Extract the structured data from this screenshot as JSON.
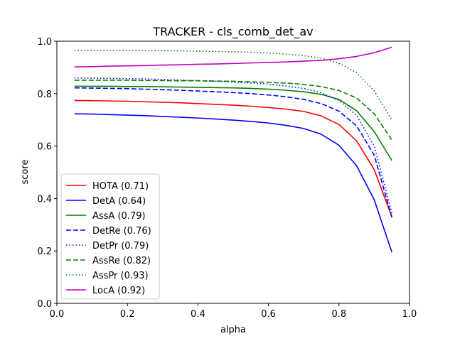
{
  "chart_data": {
    "type": "line",
    "title": "TRACKER - cls_comb_det_av",
    "xlabel": "alpha",
    "ylabel": "score",
    "xlim": [
      0.0,
      1.0
    ],
    "ylim": [
      0.0,
      1.0
    ],
    "xticks": [
      "0.0",
      "0.2",
      "0.4",
      "0.6",
      "0.8",
      "1.0"
    ],
    "yticks": [
      "0.0",
      "0.2",
      "0.4",
      "0.6",
      "0.8",
      "1.0"
    ],
    "grid": false,
    "legend_position": "lower-left",
    "x": [
      0.05,
      0.1,
      0.15,
      0.2,
      0.25,
      0.3,
      0.35,
      0.4,
      0.45,
      0.5,
      0.55,
      0.6,
      0.65,
      0.7,
      0.75,
      0.8,
      0.85,
      0.9,
      0.95
    ],
    "series": [
      {
        "name": "HOTA (0.71)",
        "color": "#ff0000",
        "dash": "solid",
        "values": [
          0.774,
          0.773,
          0.772,
          0.771,
          0.769,
          0.767,
          0.765,
          0.762,
          0.759,
          0.756,
          0.752,
          0.747,
          0.741,
          0.732,
          0.715,
          0.682,
          0.62,
          0.51,
          0.33
        ]
      },
      {
        "name": "DetA (0.64)",
        "color": "#0000ff",
        "dash": "solid",
        "values": [
          0.723,
          0.722,
          0.72,
          0.718,
          0.716,
          0.713,
          0.71,
          0.707,
          0.703,
          0.699,
          0.694,
          0.688,
          0.679,
          0.667,
          0.645,
          0.603,
          0.525,
          0.395,
          0.195
        ]
      },
      {
        "name": "AssA (0.79)",
        "color": "#008000",
        "dash": "solid",
        "values": [
          0.828,
          0.828,
          0.828,
          0.827,
          0.827,
          0.826,
          0.825,
          0.824,
          0.823,
          0.822,
          0.82,
          0.817,
          0.813,
          0.807,
          0.797,
          0.778,
          0.735,
          0.655,
          0.545
        ]
      },
      {
        "name": "DetRe (0.76)",
        "color": "#0000ff",
        "dash": "dashed",
        "values": [
          0.822,
          0.821,
          0.82,
          0.819,
          0.817,
          0.815,
          0.813,
          0.81,
          0.807,
          0.804,
          0.8,
          0.795,
          0.788,
          0.778,
          0.762,
          0.733,
          0.677,
          0.565,
          0.328
        ]
      },
      {
        "name": "DetPr (0.79)",
        "color": "#0000ff",
        "dash": "dotted",
        "values": [
          0.86,
          0.859,
          0.858,
          0.857,
          0.856,
          0.854,
          0.852,
          0.85,
          0.847,
          0.844,
          0.841,
          0.836,
          0.829,
          0.82,
          0.803,
          0.774,
          0.717,
          0.6,
          0.345
        ]
      },
      {
        "name": "AssRe (0.82)",
        "color": "#008000",
        "dash": "dashed",
        "values": [
          0.851,
          0.851,
          0.851,
          0.851,
          0.85,
          0.85,
          0.849,
          0.849,
          0.848,
          0.847,
          0.845,
          0.843,
          0.84,
          0.835,
          0.827,
          0.812,
          0.783,
          0.723,
          0.623
        ]
      },
      {
        "name": "AssPr (0.93)",
        "color": "#008000",
        "dash": "dotted",
        "values": [
          0.965,
          0.965,
          0.965,
          0.965,
          0.964,
          0.964,
          0.963,
          0.962,
          0.961,
          0.96,
          0.958,
          0.955,
          0.951,
          0.945,
          0.935,
          0.916,
          0.88,
          0.81,
          0.7
        ]
      },
      {
        "name": "LocA (0.92)",
        "color": "#bf00bf",
        "dash": "solid",
        "values": [
          0.902,
          0.903,
          0.905,
          0.906,
          0.907,
          0.909,
          0.91,
          0.912,
          0.913,
          0.915,
          0.917,
          0.919,
          0.921,
          0.924,
          0.927,
          0.933,
          0.942,
          0.956,
          0.977
        ]
      }
    ]
  }
}
